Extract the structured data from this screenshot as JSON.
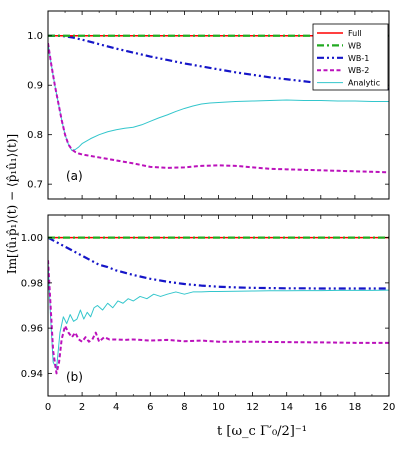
{
  "chart_data": {
    "type": "line",
    "xlabel": "t   [ω_c Γ′₀/2]⁻¹",
    "ylabel": "Im[⟨û₁p̂₁⟩(t) − ⟨p̂₁û₁⟩(t)]",
    "xlim": [
      0,
      20
    ],
    "xticks": [
      0,
      2,
      4,
      6,
      8,
      10,
      12,
      14,
      16,
      18,
      20
    ],
    "legend": {
      "placement": "top-right",
      "entries": [
        "Full",
        "WB",
        "WB-1",
        "WB-2",
        "Analytic"
      ]
    },
    "styles": {
      "Full": {
        "color": "#ff0000",
        "dash": "",
        "width": 1.6
      },
      "WB": {
        "color": "#22aa22",
        "dash": "7,3,2,3",
        "width": 2.2
      },
      "WB-1": {
        "color": "#1515c8",
        "dash": "7,3,2,3,2,3",
        "width": 2.2
      },
      "WB-2": {
        "color": "#bb11bb",
        "dash": "4,2.5",
        "width": 2.0
      },
      "Analytic": {
        "color": "#33c6cc",
        "dash": "",
        "width": 1.0
      }
    },
    "panels": [
      {
        "label": "(a)",
        "ylim": [
          0.67,
          1.05
        ],
        "yticks": [
          0.7,
          0.8,
          0.9,
          1.0
        ],
        "ytick_labels": [
          "0.7",
          "0.8",
          "0.9",
          "1.0"
        ],
        "series": [
          {
            "name": "Full",
            "x": [
              0,
              20
            ],
            "y": [
              1.0,
              1.0
            ]
          },
          {
            "name": "WB",
            "x": [
              0,
              20
            ],
            "y": [
              1.0,
              1.0
            ]
          },
          {
            "name": "WB-1",
            "x": [
              0,
              0.5,
              1,
              1.5,
              2,
              3,
              4,
              5,
              6,
              7,
              8,
              9,
              10,
              11,
              12,
              13,
              14,
              15,
              16,
              17,
              18,
              19,
              20
            ],
            "y": [
              1.0,
              1.0,
              0.999,
              0.996,
              0.992,
              0.983,
              0.974,
              0.966,
              0.958,
              0.951,
              0.944,
              0.938,
              0.932,
              0.926,
              0.921,
              0.916,
              0.912,
              0.908,
              0.904,
              0.9,
              0.897,
              0.894,
              0.892
            ]
          },
          {
            "name": "WB-2",
            "x": [
              0,
              0.2,
              0.4,
              0.6,
              0.8,
              1.0,
              1.2,
              1.4,
              1.6,
              1.8,
              2.0,
              2.5,
              3,
              4,
              5,
              6,
              7,
              8,
              9,
              10,
              11,
              12,
              13,
              14,
              15,
              16,
              17,
              18,
              19,
              20
            ],
            "y": [
              0.985,
              0.94,
              0.9,
              0.865,
              0.83,
              0.8,
              0.78,
              0.77,
              0.765,
              0.762,
              0.76,
              0.757,
              0.754,
              0.748,
              0.742,
              0.735,
              0.733,
              0.734,
              0.737,
              0.738,
              0.737,
              0.734,
              0.731,
              0.73,
              0.729,
              0.728,
              0.727,
              0.726,
              0.725,
              0.724
            ]
          },
          {
            "name": "Analytic",
            "x": [
              0,
              0.2,
              0.4,
              0.6,
              0.8,
              1.0,
              1.2,
              1.4,
              1.6,
              1.8,
              2.0,
              2.5,
              3,
              3.5,
              4,
              4.5,
              5,
              5.5,
              6,
              6.5,
              7,
              7.5,
              8,
              8.5,
              9,
              9.5,
              10,
              11,
              12,
              13,
              14,
              15,
              16,
              17,
              18,
              19,
              20
            ],
            "y": [
              0.985,
              0.94,
              0.9,
              0.865,
              0.83,
              0.8,
              0.78,
              0.768,
              0.77,
              0.775,
              0.782,
              0.792,
              0.8,
              0.806,
              0.81,
              0.813,
              0.815,
              0.82,
              0.827,
              0.834,
              0.84,
              0.847,
              0.853,
              0.858,
              0.862,
              0.864,
              0.865,
              0.867,
              0.868,
              0.869,
              0.87,
              0.869,
              0.869,
              0.868,
              0.868,
              0.867,
              0.867
            ]
          }
        ]
      },
      {
        "label": "(b)",
        "ylim": [
          0.93,
          1.01
        ],
        "yticks": [
          0.94,
          0.96,
          0.98,
          1.0
        ],
        "ytick_labels": [
          "0.94",
          "0.96",
          "0.98",
          "1.00"
        ],
        "series": [
          {
            "name": "Full",
            "x": [
              0,
              20
            ],
            "y": [
              1.0,
              1.0
            ]
          },
          {
            "name": "WB",
            "x": [
              0,
              20
            ],
            "y": [
              1.0,
              1.0
            ]
          },
          {
            "name": "WB-1",
            "x": [
              0,
              0.5,
              1,
              1.5,
              2,
              2.5,
              3,
              3.5,
              4,
              4.5,
              5,
              6,
              7,
              8,
              9,
              10,
              11,
              12,
              13,
              14,
              15,
              16,
              17,
              18,
              19,
              20
            ],
            "y": [
              1.0,
              0.998,
              0.996,
              0.994,
              0.992,
              0.99,
              0.988,
              0.987,
              0.9855,
              0.9845,
              0.9835,
              0.9818,
              0.9805,
              0.9795,
              0.9788,
              0.9783,
              0.978,
              0.9778,
              0.9777,
              0.9776,
              0.9776,
              0.9775,
              0.9775,
              0.9775,
              0.9775,
              0.9775
            ]
          },
          {
            "name": "WB-2",
            "x": [
              0,
              0.15,
              0.3,
              0.5,
              0.65,
              0.8,
              1.0,
              1.2,
              1.4,
              1.6,
              1.8,
              2.0,
              2.2,
              2.4,
              2.6,
              2.8,
              3.0,
              3.3,
              3.6,
              4,
              4.5,
              5,
              6,
              7,
              8,
              9,
              10,
              12,
              14,
              16,
              18,
              20
            ],
            "y": [
              0.99,
              0.97,
              0.95,
              0.94,
              0.945,
              0.955,
              0.961,
              0.958,
              0.956,
              0.958,
              0.955,
              0.954,
              0.956,
              0.954,
              0.955,
              0.958,
              0.954,
              0.956,
              0.955,
              0.955,
              0.9548,
              0.955,
              0.9545,
              0.9548,
              0.9542,
              0.9545,
              0.954,
              0.954,
              0.9538,
              0.9537,
              0.9535,
              0.9535
            ]
          },
          {
            "name": "Analytic",
            "x": [
              0,
              0.15,
              0.3,
              0.5,
              0.7,
              0.9,
              1.1,
              1.3,
              1.5,
              1.7,
              1.9,
              2.1,
              2.3,
              2.5,
              2.7,
              2.9,
              3.2,
              3.5,
              3.8,
              4.1,
              4.4,
              4.7,
              5.0,
              5.4,
              5.8,
              6.2,
              6.6,
              7.0,
              7.5,
              8,
              8.5,
              9,
              9.5,
              10,
              11,
              12,
              13,
              14,
              15,
              16,
              17,
              18,
              19,
              20
            ],
            "y": [
              0.99,
              0.965,
              0.945,
              0.942,
              0.958,
              0.965,
              0.962,
              0.966,
              0.963,
              0.964,
              0.968,
              0.964,
              0.967,
              0.965,
              0.969,
              0.97,
              0.968,
              0.971,
              0.969,
              0.972,
              0.971,
              0.973,
              0.972,
              0.974,
              0.973,
              0.975,
              0.974,
              0.975,
              0.976,
              0.975,
              0.976,
              0.976,
              0.9762,
              0.9762,
              0.9763,
              0.9764,
              0.9765,
              0.9765,
              0.9766,
              0.9766,
              0.9767,
              0.9767,
              0.9767,
              0.9768
            ]
          }
        ]
      }
    ]
  }
}
